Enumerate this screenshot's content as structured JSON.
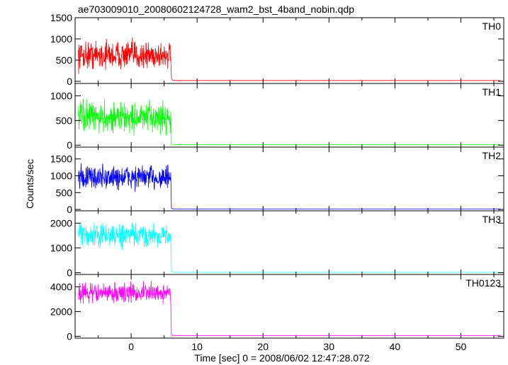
{
  "chart_data": {
    "type": "line",
    "title": "ae703009010_20080602124728_wam2_bst_4band_nobin.qdp",
    "xlabel": "Time [sec] 0 = 2008/06/02 12:47:28.072",
    "ylabel": "Counts/sec",
    "xlim": [
      -8.5,
      56.5
    ],
    "x_ticks": [
      "0",
      "10",
      "20",
      "30",
      "40",
      "50"
    ],
    "x_tick_values": [
      0,
      10,
      20,
      30,
      40,
      50
    ],
    "burst_start": -8.0,
    "burst_end": 6.0,
    "background_end": 56.0,
    "panels": [
      {
        "name": "TH0",
        "color": "#ff0000",
        "ylim": [
          -50,
          1500
        ],
        "y_ticks": [
          "0",
          "500",
          "1000",
          "1500"
        ],
        "y_tick_values": [
          0,
          500,
          1000,
          1500
        ],
        "burst_level": 620,
        "burst_spread": 300,
        "background_level": 20
      },
      {
        "name": "TH1",
        "color": "#00ff00",
        "ylim": [
          -40,
          1250
        ],
        "y_ticks": [
          "0",
          "500",
          "1000"
        ],
        "y_tick_values": [
          0,
          500,
          1000
        ],
        "burst_level": 560,
        "burst_spread": 280,
        "background_level": 10
      },
      {
        "name": "TH2",
        "color": "#0000ff",
        "ylim": [
          -40,
          1850
        ],
        "y_ticks": [
          "0",
          "500",
          "1000",
          "1500"
        ],
        "y_tick_values": [
          0,
          500,
          1000,
          1500
        ],
        "burst_level": 950,
        "burst_spread": 340,
        "background_level": 15
      },
      {
        "name": "TH3",
        "color": "#00ffff",
        "ylim": [
          -70,
          2500
        ],
        "y_ticks": [
          "0",
          "1000",
          "2000"
        ],
        "y_tick_values": [
          0,
          1000,
          2000
        ],
        "burst_level": 1500,
        "burst_spread": 420,
        "background_level": 20
      },
      {
        "name": "TH0123",
        "color": "#ff00ff",
        "ylim": [
          -150,
          5000
        ],
        "y_ticks": [
          "0",
          "2000",
          "4000"
        ],
        "y_tick_values": [
          0,
          2000,
          4000
        ],
        "burst_level": 3500,
        "burst_spread": 700,
        "background_level": 60
      }
    ]
  }
}
